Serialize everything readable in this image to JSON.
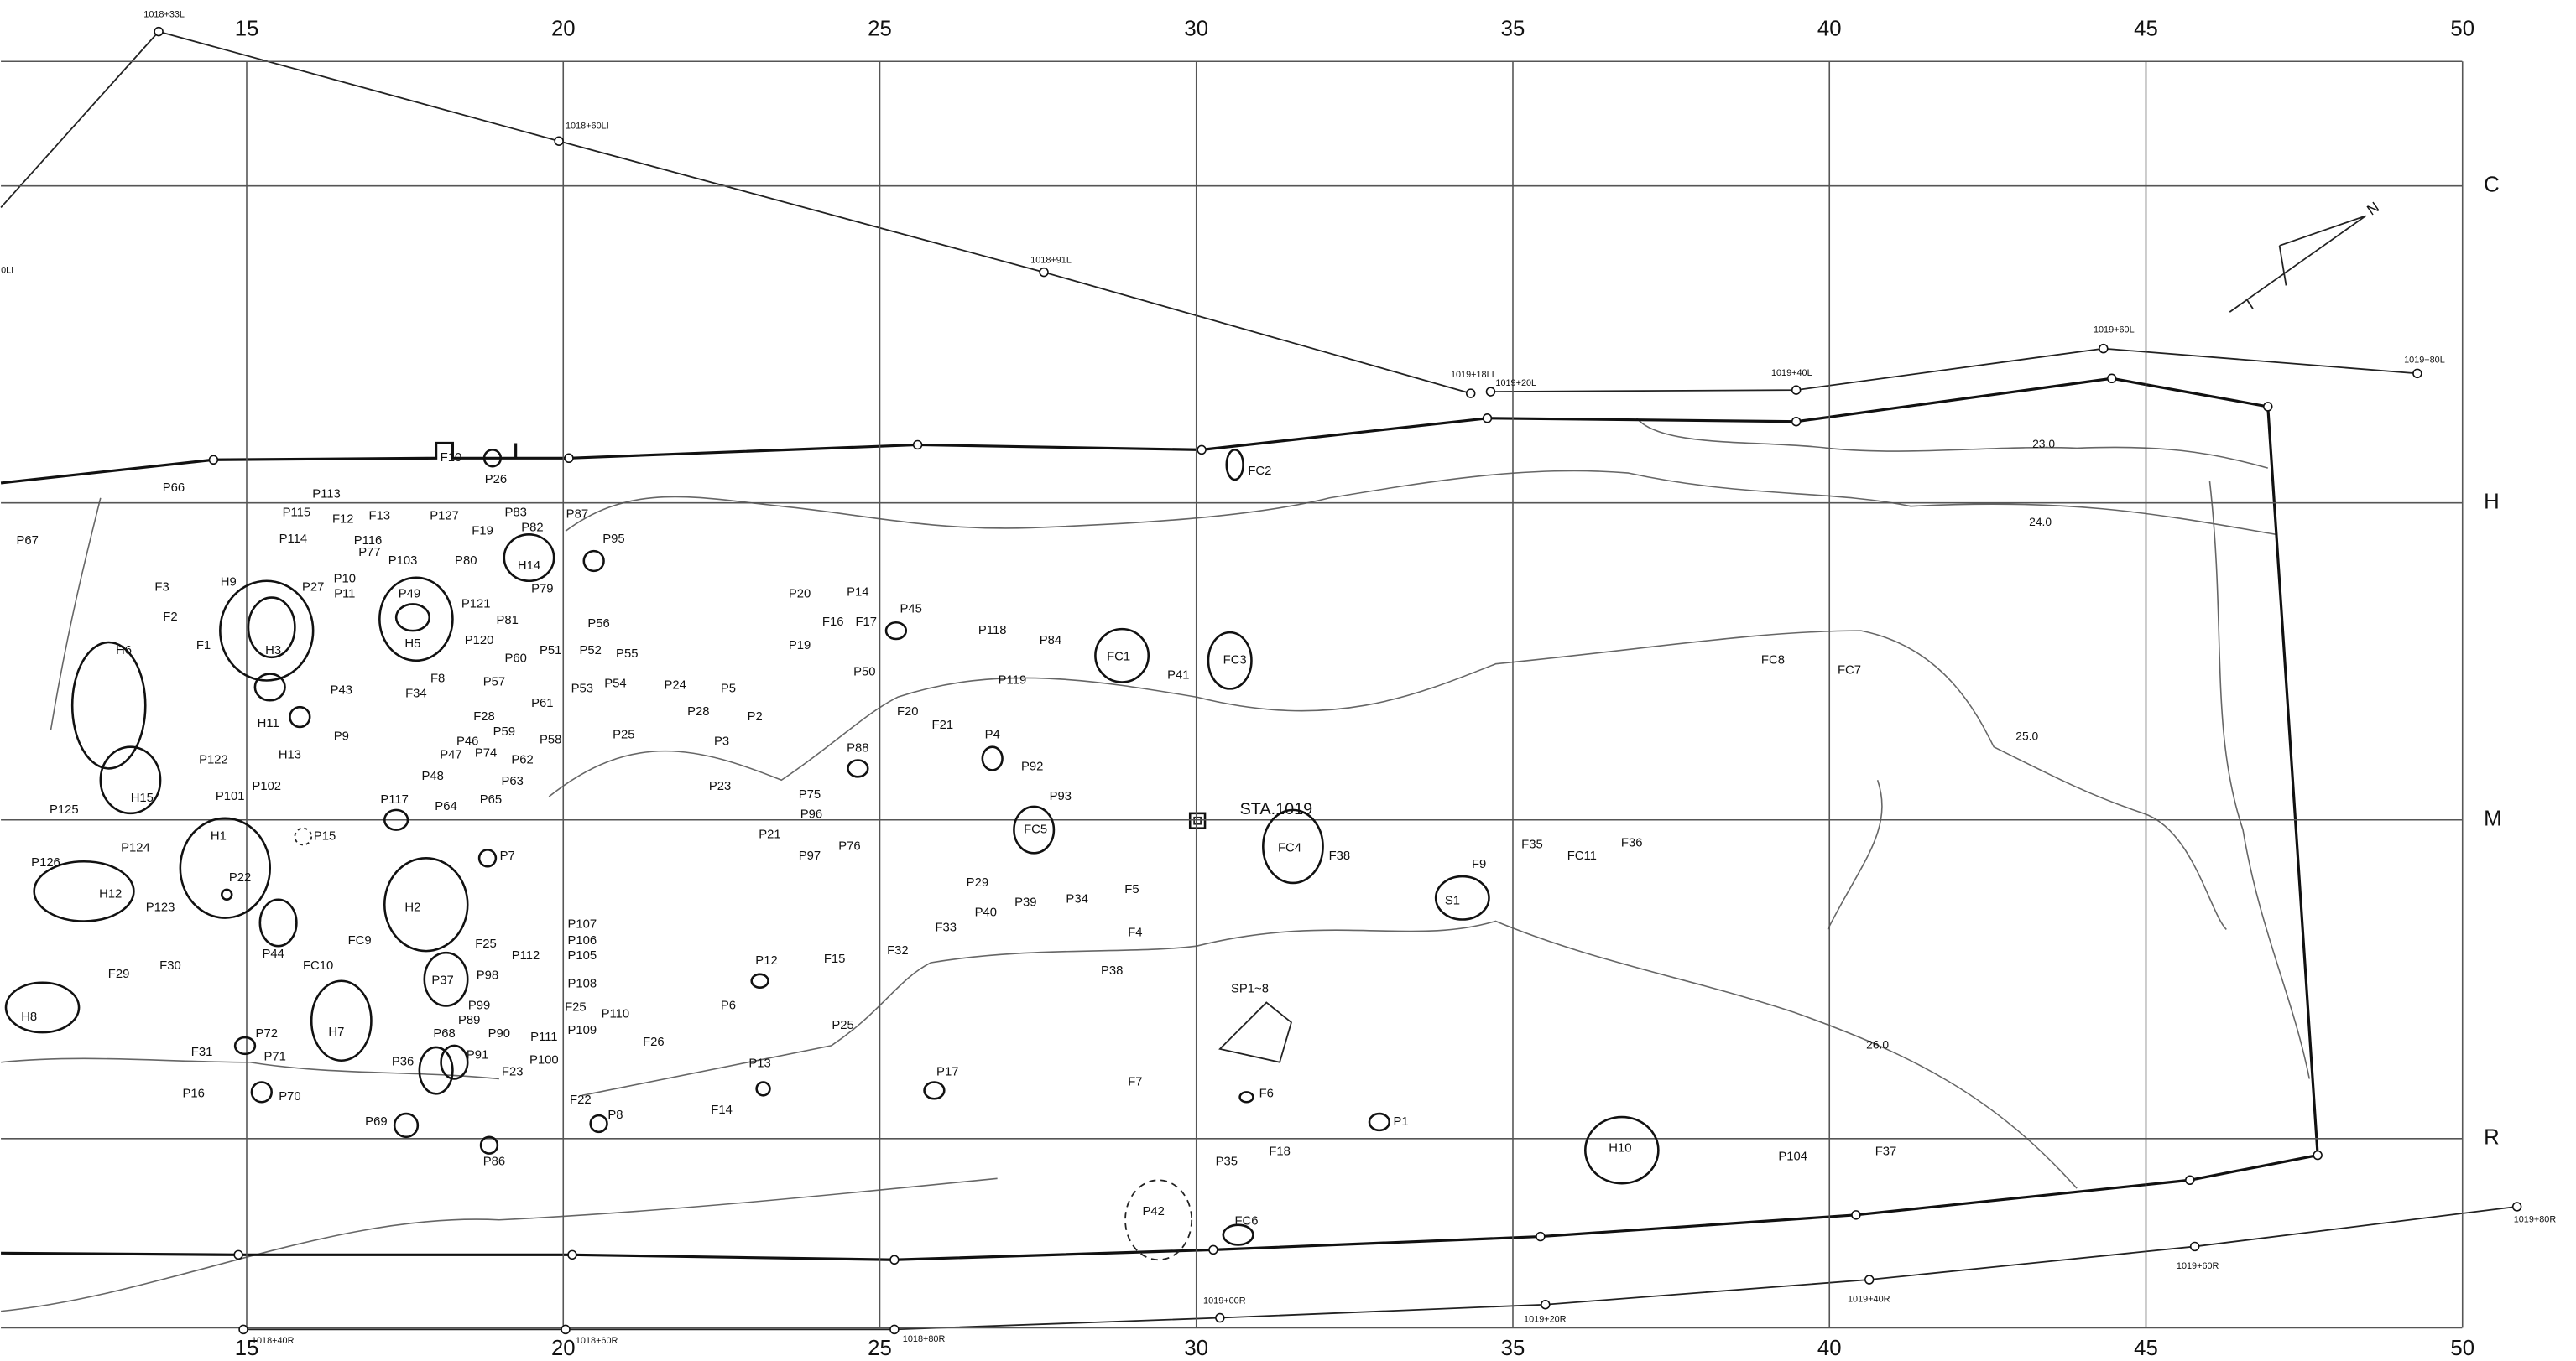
{
  "grid": {
    "columns": [
      "15",
      "20",
      "25",
      "30",
      "35",
      "40",
      "45",
      "50"
    ],
    "rows": [
      "C",
      "H",
      "M",
      "R"
    ]
  },
  "stations": {
    "left": "0LI",
    "top": [
      "1018+33L",
      "1018+60LI",
      "1018+91L",
      "1019+18LI",
      "1019+20L",
      "1019+40L",
      "1019+60L",
      "1019+80L"
    ],
    "bottom": [
      "1018+40R",
      "1018+60R",
      "1018+80R",
      "1019+00R",
      "1019+20R",
      "1019+40R",
      "1019+60R",
      "1019+80R"
    ]
  },
  "contours": [
    "23.0",
    "24.0",
    "25.0",
    "26.0"
  ],
  "north": "N",
  "features": [
    "P66",
    "P67",
    "P113",
    "P115",
    "F12",
    "F13",
    "P114",
    "P116",
    "P77",
    "P103",
    "P10",
    "P11",
    "P127",
    "F19",
    "P83",
    "P82",
    "P87",
    "P95",
    "P80",
    "H14",
    "P79",
    "P121",
    "P81",
    "H9",
    "P27",
    "P49",
    "H5",
    "F3",
    "F2",
    "F1",
    "H3",
    "H6",
    "P43",
    "F8",
    "F34",
    "P120",
    "P60",
    "P51",
    "P52",
    "P55",
    "P56",
    "P57",
    "P53",
    "P54",
    "H11",
    "H13",
    "P9",
    "F28",
    "P61",
    "P59",
    "P58",
    "P46",
    "P47",
    "P74",
    "P62",
    "P48",
    "P63",
    "P64",
    "P65",
    "P122",
    "P101",
    "P102",
    "P125",
    "H15",
    "P117",
    "P15",
    "H1",
    "P22",
    "P7",
    "P126",
    "P124",
    "H12",
    "P123",
    "H2",
    "P44",
    "FC9",
    "FC10",
    "F29",
    "F30",
    "F25",
    "P112",
    "P107",
    "P106",
    "P105",
    "P98",
    "P37",
    "P108",
    "P99",
    "F25",
    "P110",
    "P89",
    "P90",
    "P109",
    "H7",
    "P72",
    "P68",
    "P111",
    "P91",
    "P100",
    "F31",
    "P71",
    "P36",
    "F23",
    "P16",
    "P70",
    "P69",
    "F22",
    "P8",
    "P86",
    "F26",
    "P13",
    "F14",
    "F10",
    "P26",
    "H8",
    "P20",
    "P14",
    "P45",
    "F16",
    "F17",
    "P19",
    "P50",
    "P24",
    "P5",
    "P28",
    "P2",
    "P3",
    "P25",
    "P23",
    "P88",
    "P75",
    "P96",
    "P21",
    "P97",
    "P76",
    "F20",
    "F21",
    "P118",
    "P84",
    "P119",
    "P4",
    "P92",
    "P93",
    "FC5",
    "P29",
    "P40",
    "P39",
    "P34",
    "F33",
    "F5",
    "F4",
    "P38",
    "P12",
    "F15",
    "F32",
    "P6",
    "P25",
    "P17",
    "F7",
    "FC1",
    "P41",
    "FC3",
    "FC2",
    "STA.1019",
    "FC4",
    "F38",
    "SP1~8",
    "F6",
    "F18",
    "P35",
    "P42",
    "FC6",
    "P1",
    "S1",
    "F9",
    "F35",
    "FC11",
    "F36",
    "FC8",
    "FC7",
    "H10",
    "P104",
    "F37"
  ]
}
